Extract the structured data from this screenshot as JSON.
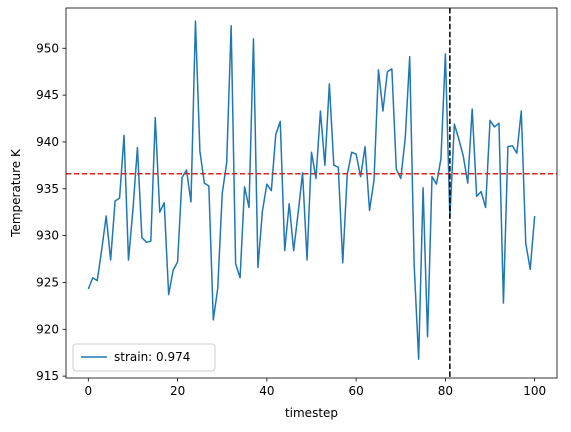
{
  "chart_data": {
    "type": "line",
    "xlabel": "timestep",
    "ylabel": "Temperature K",
    "xlim": [
      -5,
      105
    ],
    "ylim": [
      914.8,
      954.3
    ],
    "xticks": [
      0,
      20,
      40,
      60,
      80,
      100
    ],
    "yticks": [
      915,
      920,
      925,
      930,
      935,
      940,
      945,
      950
    ],
    "grid": false,
    "legend_position": "lower-left",
    "series": [
      {
        "name": "strain: 0.974",
        "color": "#1f77b4",
        "x": [
          0,
          1,
          2,
          3,
          4,
          5,
          6,
          7,
          8,
          9,
          10,
          11,
          12,
          13,
          14,
          15,
          16,
          17,
          18,
          19,
          20,
          21,
          22,
          23,
          24,
          25,
          26,
          27,
          28,
          29,
          30,
          31,
          32,
          33,
          34,
          35,
          36,
          37,
          38,
          39,
          40,
          41,
          42,
          43,
          44,
          45,
          46,
          47,
          48,
          49,
          50,
          51,
          52,
          53,
          54,
          55,
          56,
          57,
          58,
          59,
          60,
          61,
          62,
          63,
          64,
          65,
          66,
          67,
          68,
          69,
          70,
          71,
          72,
          73,
          74,
          75,
          76,
          77,
          78,
          79,
          80,
          81,
          82,
          83,
          84,
          85,
          86,
          87,
          88,
          89,
          90,
          91,
          92,
          93,
          94,
          95,
          96,
          97,
          98,
          99,
          100
        ],
        "values": [
          924.3,
          925.5,
          925.2,
          928.5,
          932.1,
          927.4,
          933.7,
          934.0,
          940.7,
          927.4,
          932.8,
          939.4,
          929.8,
          929.3,
          929.4,
          942.6,
          932.5,
          933.5,
          923.7,
          926.3,
          927.2,
          936.2,
          937.0,
          933.6,
          952.9,
          939.0,
          935.6,
          935.3,
          921.0,
          924.4,
          934.5,
          937.8,
          952.4,
          927.0,
          925.5,
          935.2,
          933.0,
          951.0,
          926.6,
          932.6,
          935.5,
          934.8,
          940.8,
          942.2,
          928.4,
          933.4,
          928.4,
          932.4,
          936.7,
          927.4,
          938.9,
          936.1,
          943.3,
          937.5,
          946.2,
          937.5,
          937.3,
          927.1,
          936.5,
          938.9,
          938.7,
          936.3,
          939.5,
          932.7,
          935.9,
          947.7,
          943.3,
          947.5,
          947.8,
          937.1,
          936.1,
          940.4,
          949.1,
          926.9,
          916.8,
          935.1,
          919.2,
          936.3,
          935.5,
          938.2,
          949.4,
          931.9,
          941.9,
          940.3,
          938.5,
          935.6,
          943.5,
          934.2,
          934.7,
          933.0,
          942.3,
          941.6,
          942.0,
          922.8,
          939.5,
          939.6,
          938.8,
          943.3,
          929.2,
          926.4,
          932.1
        ]
      }
    ],
    "reference_lines": [
      {
        "orientation": "horizontal",
        "value": 936.6,
        "color": "#d62728",
        "style": "dashed"
      },
      {
        "orientation": "vertical",
        "value": 81,
        "color": "#000000",
        "style": "dashed"
      }
    ]
  }
}
